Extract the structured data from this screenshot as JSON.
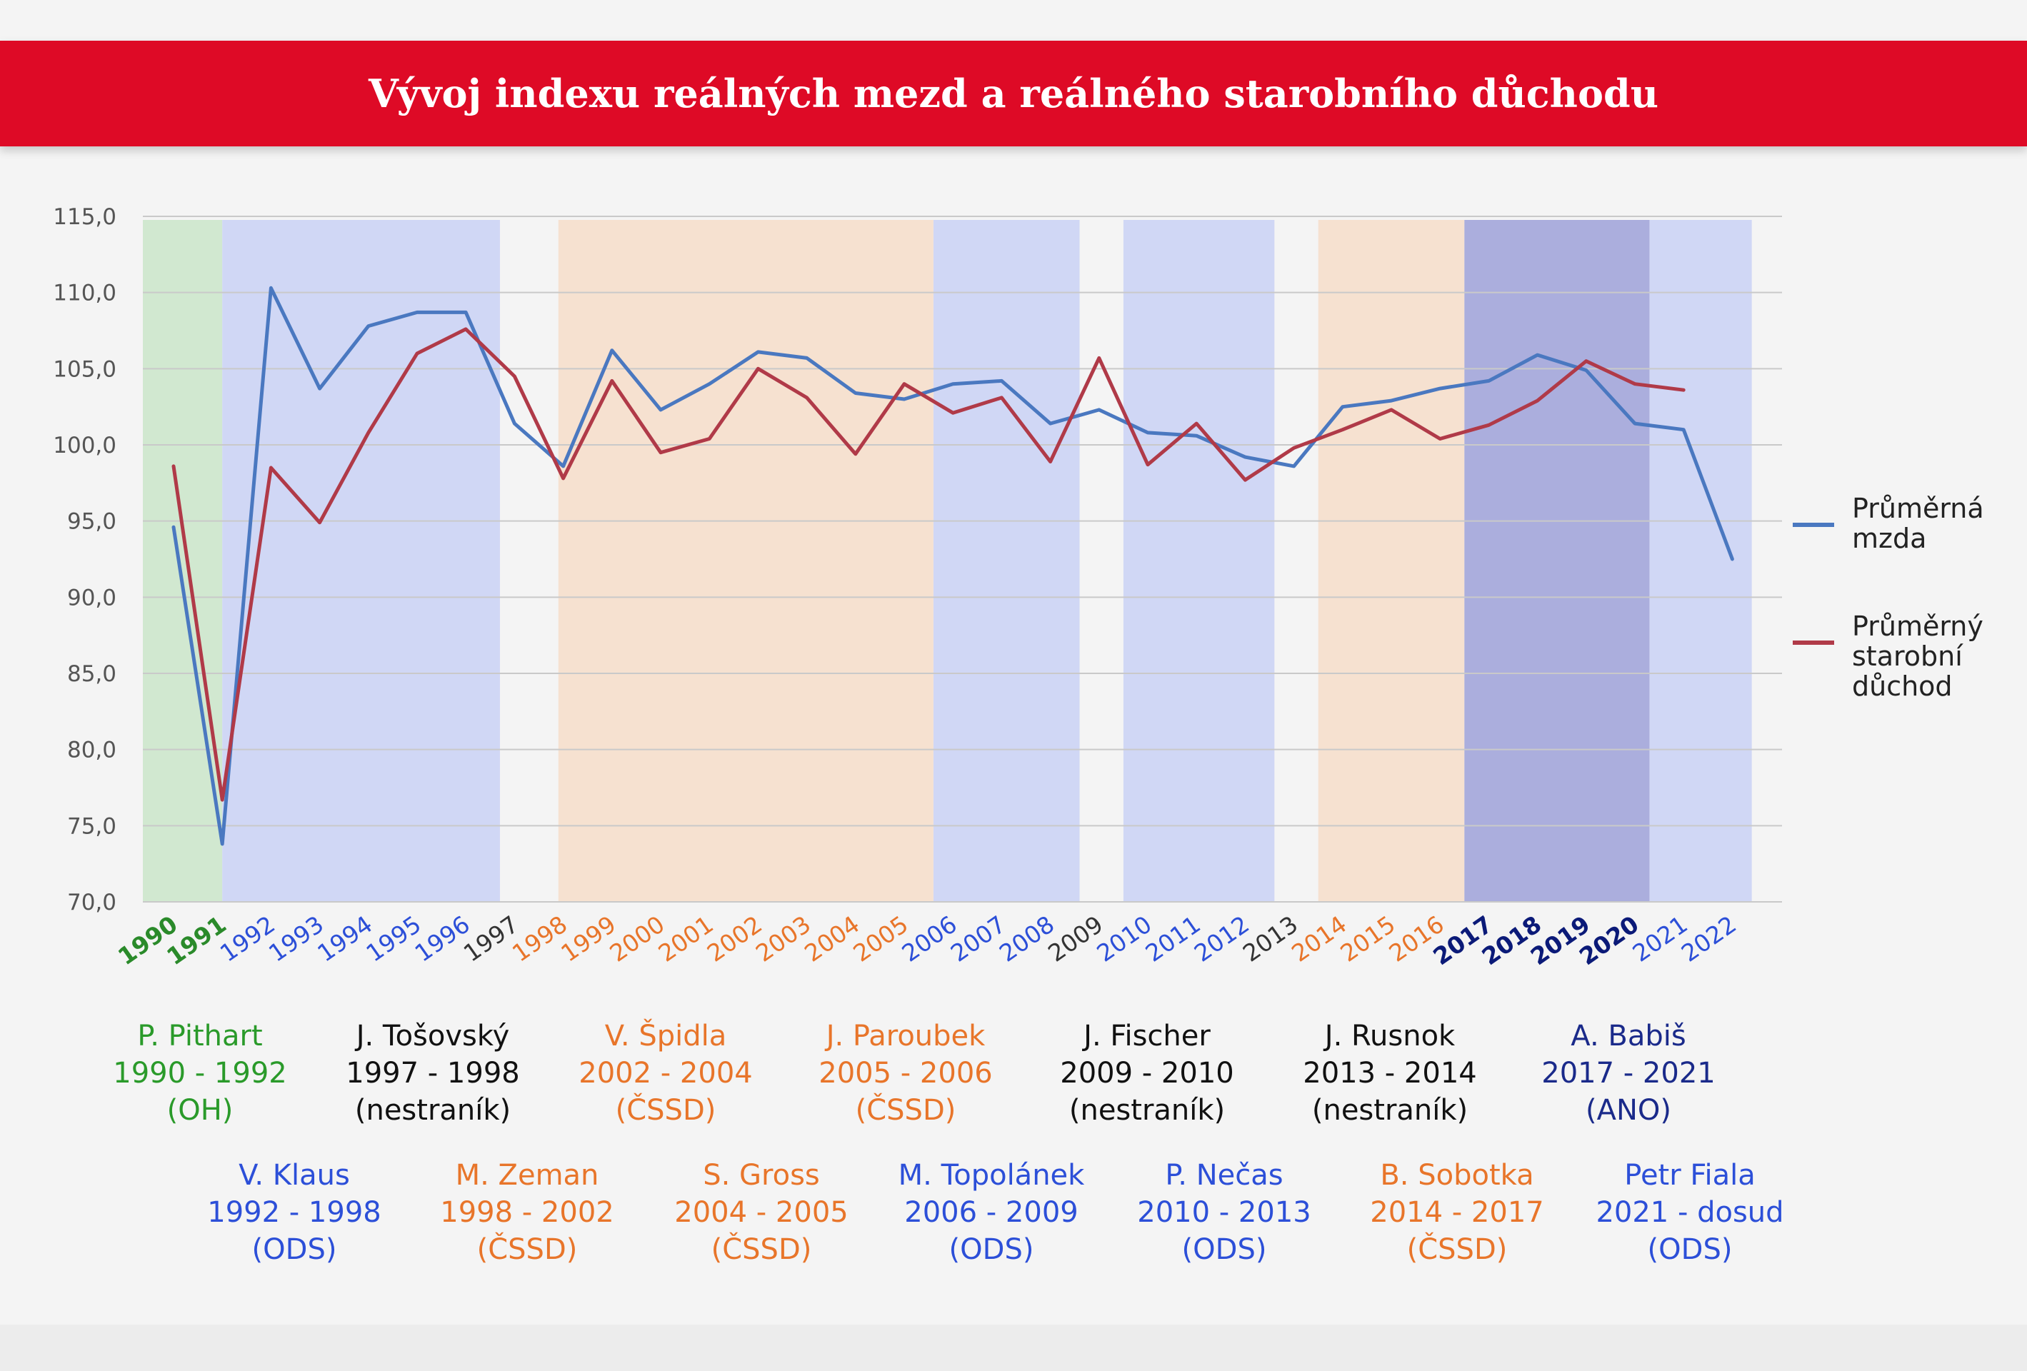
{
  "title": "Vývoj indexu reálných mezd a reálného starobního důchodu",
  "chart_data": {
    "type": "line",
    "x": [
      1990,
      1991,
      1992,
      1993,
      1994,
      1995,
      1996,
      1997,
      1998,
      1999,
      2000,
      2001,
      2002,
      2003,
      2004,
      2005,
      2006,
      2007,
      2008,
      2009,
      2010,
      2011,
      2012,
      2013,
      2014,
      2015,
      2016,
      2017,
      2018,
      2019,
      2020,
      2021,
      2022
    ],
    "x_label_colors": [
      "#2a8a2a",
      "#2a8a2a",
      "#2c4fd8",
      "#2c4fd8",
      "#2c4fd8",
      "#2c4fd8",
      "#2c4fd8",
      "#333333",
      "#e8752a",
      "#e8752a",
      "#e8752a",
      "#e8752a",
      "#e8752a",
      "#e8752a",
      "#e8752a",
      "#e8752a",
      "#2c4fd8",
      "#2c4fd8",
      "#2c4fd8",
      "#333333",
      "#2c4fd8",
      "#2c4fd8",
      "#2c4fd8",
      "#333333",
      "#e8752a",
      "#e8752a",
      "#e8752a",
      "#0b1a78",
      "#0b1a78",
      "#0b1a78",
      "#0b1a78",
      "#2c4fd8",
      "#2c4fd8"
    ],
    "ylim": [
      70,
      115
    ],
    "yticks": [
      "70,0",
      "75,0",
      "80,0",
      "85,0",
      "90,0",
      "95,0",
      "100,0",
      "105,0",
      "110,0",
      "115,0"
    ],
    "grid": true,
    "legend_position": "right",
    "series": [
      {
        "name": "Průměrná mzda",
        "color": "#4a78c0",
        "values": [
          94.6,
          73.8,
          110.3,
          103.7,
          107.8,
          108.7,
          108.7,
          101.4,
          98.6,
          106.2,
          102.3,
          104.0,
          106.1,
          105.7,
          103.4,
          103.0,
          104.0,
          104.2,
          101.4,
          102.3,
          100.8,
          100.6,
          99.2,
          98.6,
          102.5,
          102.9,
          103.7,
          104.2,
          105.9,
          104.9,
          101.4,
          101.0,
          92.5
        ]
      },
      {
        "name": "Průměrný starobní důchod",
        "color": "#b03a48",
        "values": [
          98.6,
          76.7,
          98.5,
          94.9,
          100.8,
          106.0,
          107.6,
          104.5,
          97.8,
          104.2,
          99.5,
          100.4,
          105.0,
          103.1,
          99.4,
          104.0,
          102.1,
          103.1,
          98.9,
          105.7,
          98.7,
          101.4,
          97.7,
          99.8,
          101.0,
          102.3,
          100.4,
          101.3,
          102.9,
          105.5,
          104.0,
          103.6,
          null
        ]
      }
    ],
    "legend_display": [
      {
        "lines": [
          "Průměrná",
          "mzda"
        ]
      },
      {
        "lines": [
          "Průměrný",
          "starobní",
          "důchod"
        ]
      }
    ],
    "bands": [
      {
        "from": 1990,
        "to": 1991,
        "color": "#d1e8d0"
      },
      {
        "from": 1991,
        "to": 1996.7,
        "color": "#d0d7f5"
      },
      {
        "from": 1997.9,
        "to": 2005.6,
        "color": "#f6e1d0"
      },
      {
        "from": 2005.6,
        "to": 2008.6,
        "color": "#d0d7f5"
      },
      {
        "from": 2009.5,
        "to": 2012.6,
        "color": "#d0d7f5"
      },
      {
        "from": 2013.5,
        "to": 2016.5,
        "color": "#f6e1d0"
      },
      {
        "from": 2016.5,
        "to": 2020.3,
        "color": "#abaedd"
      },
      {
        "from": 2020.3,
        "to": 2022.4,
        "color": "#d0d7f5"
      }
    ]
  },
  "leaders_top": [
    {
      "name": "P. Pithart",
      "period": "1990 - 1992",
      "party": "(OH)",
      "color": "#2a9a2a"
    },
    {
      "name": "J. Tošovský",
      "period": "1997 - 1998",
      "party": "(nestraník)",
      "color": "#111111"
    },
    {
      "name": "V. Špidla",
      "period": "2002 - 2004",
      "party": "(ČSSD)",
      "color": "#e8752a"
    },
    {
      "name": "J. Paroubek",
      "period": "2005 - 2006",
      "party": "(ČSSD)",
      "color": "#e8752a"
    },
    {
      "name": "J. Fischer",
      "period": "2009 - 2010",
      "party": "(nestraník)",
      "color": "#111111"
    },
    {
      "name": "J. Rusnok",
      "period": "2013 - 2014",
      "party": "(nestraník)",
      "color": "#111111"
    },
    {
      "name": "A. Babiš",
      "period": "2017 - 2021",
      "party": "(ANO)",
      "color": "#1a2a8a"
    }
  ],
  "leaders_bottom": [
    {
      "name": "V. Klaus",
      "period": "1992 - 1998",
      "party": "(ODS)",
      "color": "#2c4fd8"
    },
    {
      "name": "M. Zeman",
      "period": "1998 - 2002",
      "party": "(ČSSD)",
      "color": "#e8752a"
    },
    {
      "name": "S. Gross",
      "period": "2004 - 2005",
      "party": "(ČSSD)",
      "color": "#e8752a"
    },
    {
      "name": "M. Topolánek",
      "period": "2006 - 2009",
      "party": "(ODS)",
      "color": "#2c4fd8"
    },
    {
      "name": "P. Nečas",
      "period": "2010 - 2013",
      "party": "(ODS)",
      "color": "#2c4fd8"
    },
    {
      "name": "B. Sobotka",
      "period": "2014 - 2017",
      "party": "(ČSSD)",
      "color": "#e8752a"
    },
    {
      "name": "Petr Fiala",
      "period": "2021 - dosud",
      "party": "(ODS)",
      "color": "#2c4fd8"
    }
  ]
}
